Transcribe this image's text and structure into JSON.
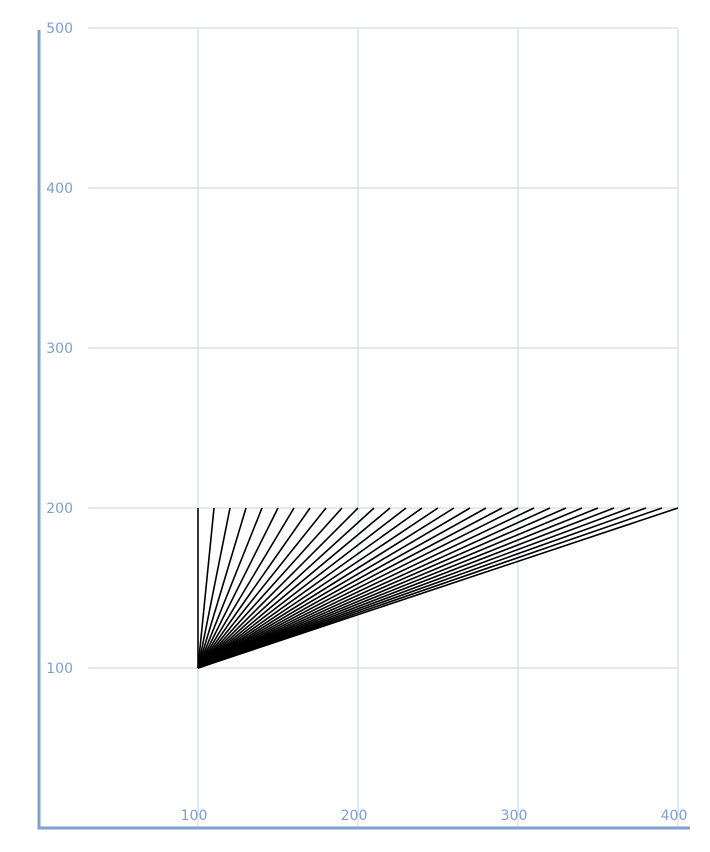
{
  "chart_data": {
    "type": "line",
    "title": "",
    "xlabel": "",
    "ylabel": "",
    "xlim": [
      30,
      400
    ],
    "ylim": [
      20,
      500
    ],
    "x_ticks": [
      "100",
      "200",
      "300",
      "400"
    ],
    "y_ticks": [
      "100",
      "200",
      "300",
      "400",
      "500"
    ],
    "grid": true,
    "colors": {
      "axis": "#7f9fcf",
      "grid": "#c8d6e6",
      "tick_label": "#7f9fcf",
      "line": "#000000"
    },
    "origin": {
      "x": 100,
      "y": 100
    },
    "line_end_y": 200,
    "line_end_x": [
      100,
      110,
      120,
      130,
      140,
      150,
      160,
      170,
      180,
      190,
      200,
      210,
      220,
      230,
      240,
      250,
      260,
      270,
      280,
      290,
      300,
      310,
      320,
      330,
      340,
      350,
      360,
      370,
      380,
      390,
      400
    ]
  }
}
